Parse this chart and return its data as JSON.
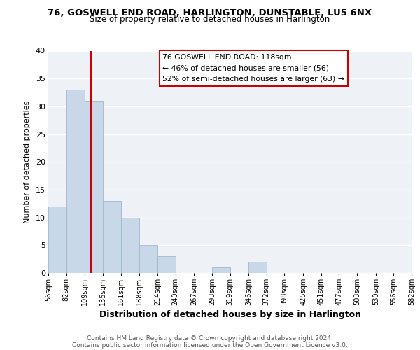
{
  "title": "76, GOSWELL END ROAD, HARLINGTON, DUNSTABLE, LU5 6NX",
  "subtitle": "Size of property relative to detached houses in Harlington",
  "xlabel": "Distribution of detached houses by size in Harlington",
  "ylabel": "Number of detached properties",
  "bin_labels": [
    "56sqm",
    "82sqm",
    "109sqm",
    "135sqm",
    "161sqm",
    "188sqm",
    "214sqm",
    "240sqm",
    "267sqm",
    "293sqm",
    "319sqm",
    "346sqm",
    "372sqm",
    "398sqm",
    "425sqm",
    "451sqm",
    "477sqm",
    "503sqm",
    "530sqm",
    "556sqm",
    "582sqm"
  ],
  "bar_values": [
    12,
    33,
    31,
    13,
    10,
    5,
    3,
    0,
    0,
    1,
    0,
    2,
    0,
    0,
    0,
    0,
    0,
    0,
    0,
    0
  ],
  "bar_color": "#c8d8e8",
  "bar_edge_color": "#a0b8cc",
  "property_line_x": 118,
  "annotation_lines": [
    "76 GOSWELL END ROAD: 118sqm",
    "← 46% of detached houses are smaller (56)",
    "52% of semi-detached houses are larger (63) →"
  ],
  "annotation_box_color": "#ffffff",
  "annotation_box_edge": "#cc0000",
  "vertical_line_color": "#cc0000",
  "ylim": [
    0,
    40
  ],
  "yticks": [
    0,
    5,
    10,
    15,
    20,
    25,
    30,
    35,
    40
  ],
  "background_color": "#eef2f7",
  "grid_color": "#ffffff",
  "footer_line1": "Contains HM Land Registry data © Crown copyright and database right 2024.",
  "footer_line2": "Contains public sector information licensed under the Open Government Licence v3.0."
}
